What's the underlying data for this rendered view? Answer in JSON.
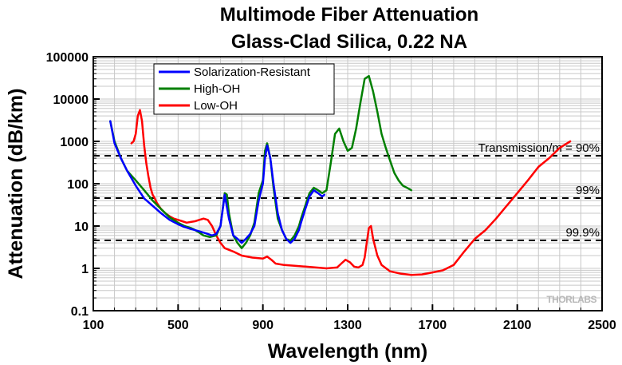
{
  "chart_data": {
    "type": "line",
    "title": "Multimode Fiber Attenuation",
    "subtitle": "Glass-Clad Silica, 0.22 NA",
    "xlabel": "Wavelength (nm)",
    "ylabel": "Attenuation (dB/km)",
    "xlim": [
      100,
      2500
    ],
    "ylim": [
      0.1,
      100000
    ],
    "yscale": "log",
    "grid": true,
    "x_ticks": [
      "100",
      "500",
      "900",
      "1300",
      "1700",
      "2100",
      "2500"
    ],
    "y_ticks": [
      "0.1",
      "1",
      "10",
      "100",
      "1000",
      "10000",
      "100000"
    ],
    "legend_position": "top-left",
    "series": [
      {
        "name": "Solarization-Resistant",
        "color": "#0000ff",
        "x": [
          180,
          200,
          230,
          260,
          300,
          340,
          380,
          420,
          460,
          500,
          530,
          560,
          580,
          600,
          620,
          640,
          660,
          680,
          700,
          720,
          740,
          760,
          780,
          800,
          820,
          840,
          860,
          880,
          900,
          910,
          920,
          935,
          950,
          970,
          990,
          1010,
          1030,
          1050,
          1070,
          1080,
          1100,
          1120,
          1140,
          1160,
          1180,
          1190
        ],
        "y": [
          3000,
          900,
          400,
          200,
          90,
          45,
          30,
          20,
          14,
          11,
          9.5,
          8.5,
          8,
          7.5,
          7,
          6.5,
          6,
          6.5,
          10,
          55,
          15,
          6,
          5,
          4,
          5,
          6.5,
          10,
          40,
          100,
          400,
          800,
          400,
          100,
          20,
          8,
          5,
          4,
          5,
          8,
          12,
          25,
          50,
          70,
          60,
          50,
          55
        ]
      },
      {
        "name": "High-OH",
        "color": "#008000",
        "x": [
          180,
          200,
          230,
          260,
          300,
          340,
          380,
          420,
          460,
          500,
          530,
          560,
          580,
          600,
          620,
          650,
          680,
          700,
          720,
          730,
          740,
          760,
          780,
          800,
          820,
          840,
          860,
          880,
          900,
          910,
          920,
          935,
          950,
          970,
          990,
          1010,
          1030,
          1050,
          1070,
          1080,
          1100,
          1120,
          1140,
          1160,
          1180,
          1200,
          1220,
          1240,
          1260,
          1280,
          1300,
          1320,
          1340,
          1360,
          1380,
          1400,
          1420,
          1440,
          1460,
          1480,
          1500,
          1520,
          1540,
          1560,
          1580,
          1600
        ],
        "y": [
          3000,
          1000,
          400,
          200,
          120,
          70,
          40,
          25,
          16,
          12,
          10,
          9,
          8,
          7,
          6,
          5.5,
          6,
          10,
          60,
          55,
          20,
          6,
          4,
          3,
          4,
          6,
          12,
          60,
          120,
          600,
          900,
          400,
          80,
          15,
          8,
          5,
          4.5,
          6,
          10,
          15,
          30,
          60,
          80,
          70,
          60,
          70,
          300,
          1500,
          2000,
          1000,
          600,
          700,
          2000,
          8000,
          30000,
          35000,
          15000,
          5000,
          1500,
          700,
          350,
          180,
          120,
          90,
          80,
          70
        ]
      },
      {
        "name": "Low-OH",
        "color": "#ff0000",
        "x": [
          280,
          290,
          300,
          310,
          320,
          330,
          340,
          350,
          360,
          370,
          380,
          390,
          400,
          420,
          440,
          460,
          480,
          500,
          520,
          540,
          560,
          580,
          600,
          620,
          640,
          660,
          680,
          700,
          720,
          760,
          800,
          850,
          900,
          920,
          940,
          960,
          1000,
          1050,
          1100,
          1150,
          1200,
          1250,
          1270,
          1290,
          1310,
          1330,
          1350,
          1370,
          1380,
          1390,
          1400,
          1410,
          1420,
          1440,
          1460,
          1500,
          1550,
          1600,
          1650,
          1700,
          1750,
          1800,
          1850,
          1900,
          1950,
          2000,
          2050,
          2100,
          2150,
          2200,
          2250,
          2300,
          2350
        ],
        "y": [
          900,
          1000,
          1500,
          4000,
          5500,
          3000,
          800,
          300,
          150,
          80,
          55,
          45,
          35,
          25,
          20,
          17,
          15,
          14,
          13,
          12,
          12.5,
          13,
          14,
          15,
          14,
          10,
          6,
          4,
          3,
          2.5,
          2,
          1.8,
          1.7,
          1.9,
          1.6,
          1.3,
          1.2,
          1.15,
          1.1,
          1.05,
          1.0,
          1.05,
          1.3,
          1.6,
          1.4,
          1.1,
          1.05,
          1.2,
          1.8,
          4,
          9,
          10,
          5,
          2,
          1.2,
          0.85,
          0.75,
          0.7,
          0.72,
          0.8,
          0.9,
          1.2,
          2.5,
          5,
          8,
          15,
          30,
          60,
          120,
          250,
          400,
          700,
          1000
        ]
      }
    ],
    "annotations": [
      {
        "label": "Transmission/m = 90%",
        "y": 457
      },
      {
        "label": "99%",
        "y": 45.7
      },
      {
        "label": "99.9%",
        "y": 4.57
      }
    ],
    "watermark": "THORLABS"
  }
}
